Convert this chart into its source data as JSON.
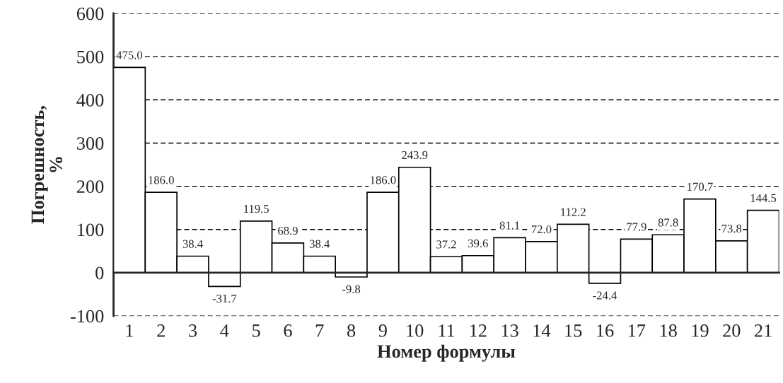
{
  "chart_data": {
    "type": "bar",
    "xlabel": "Номер формулы",
    "ylabel": "Погрешность,\n%",
    "categories": [
      "1",
      "2",
      "3",
      "4",
      "5",
      "6",
      "7",
      "8",
      "9",
      "10",
      "11",
      "12",
      "13",
      "14",
      "15",
      "16",
      "17",
      "18",
      "19",
      "20",
      "21"
    ],
    "values": [
      475.0,
      186.0,
      38.4,
      -31.7,
      119.5,
      68.9,
      38.4,
      -9.8,
      186.0,
      243.9,
      37.2,
      39.6,
      81.1,
      72.0,
      112.2,
      -24.4,
      77.9,
      87.8,
      170.7,
      73.8,
      144.5
    ],
    "value_labels": [
      "475.0",
      "186.0",
      "38.4",
      "-31.7",
      "119.5",
      "68.9",
      "38.4",
      "-9.8",
      "186.0",
      "243.9",
      "37.2",
      "39.6",
      "81.1",
      "72.0",
      "112.2",
      "-24.4",
      "77.9",
      "87.8",
      "170.7",
      "73.8",
      "144.5"
    ],
    "color": "#ffffff",
    "ylim": [
      -100,
      600
    ],
    "yticks": [
      {
        "value": -100,
        "label": "-100"
      },
      0,
      100,
      200,
      300,
      400,
      500,
      600
    ],
    "grid": "y",
    "legend": false
  }
}
